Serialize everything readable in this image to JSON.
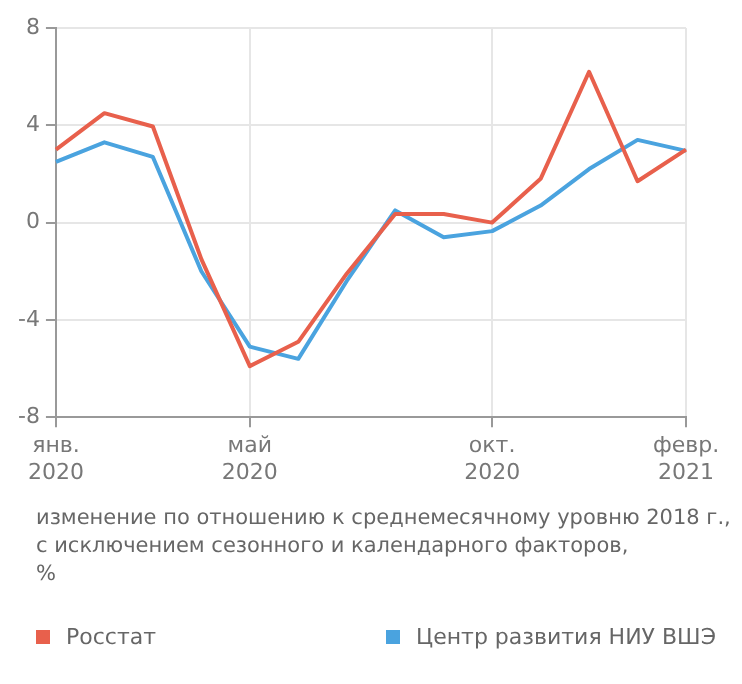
{
  "chart_data": {
    "type": "line",
    "categories": [
      "янв. 2020",
      null,
      null,
      null,
      "май 2020",
      null,
      null,
      null,
      null,
      "окт. 2020",
      null,
      null,
      null,
      "февр. 2021"
    ],
    "series": [
      {
        "name": "Росстат",
        "color": "#e8604c",
        "values": [
          3.0,
          4.5,
          3.95,
          -1.5,
          -5.9,
          -4.9,
          -2.1,
          0.35,
          0.35,
          0.0,
          1.8,
          6.2,
          1.7,
          3.0
        ]
      },
      {
        "name": "Центр развития НИУ ВШЭ",
        "color": "#4aa3df",
        "values": [
          2.5,
          3.3,
          2.7,
          -2.0,
          -5.1,
          -5.6,
          -2.4,
          0.5,
          -0.6,
          -0.35,
          0.7,
          2.2,
          3.4,
          2.95
        ]
      }
    ],
    "ylim": [
      -8,
      8
    ],
    "yticks": [
      -8,
      -4,
      0,
      4,
      8
    ],
    "grid": true,
    "legend": "bottom",
    "marker": "none",
    "line_style": "solid",
    "annotations": [
      "изменение по отношению к среднемесячному уровню 2018 г.,\nс исключением сезонного и календарного факторов,\n%"
    ]
  }
}
